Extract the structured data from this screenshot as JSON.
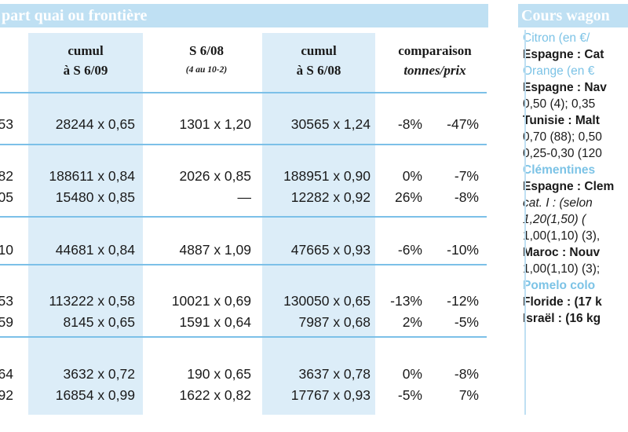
{
  "left": {
    "title": "part quai ou frontière",
    "headers": {
      "c1": [
        "cumul",
        "à S 6/09"
      ],
      "c2": [
        "S 6/08",
        "(4 au 10-2)"
      ],
      "c3": [
        "cumul",
        "à S 6/08"
      ],
      "c4": [
        "comparaison",
        "tonnes/prix"
      ]
    },
    "rows": [
      {
        "c0": "53",
        "c1": "28244 x 0,65",
        "c2": "1301 x 1,20",
        "c3": "30565 x 1,24",
        "c4a": "-8%",
        "c4b": "-47%"
      },
      {
        "c0": "82",
        "c1": "188611 x 0,84",
        "c2": "2026 x 0,85",
        "c3": "188951 x 0,90",
        "c4a": "0%",
        "c4b": "-7%"
      },
      {
        "c0": "05",
        "c1": "15480 x 0,85",
        "c2": "—",
        "c3": "12282 x 0,92",
        "c4a": "26%",
        "c4b": "-8%"
      },
      {
        "c0": "10",
        "c1": "44681 x 0,84",
        "c2": "4887 x 1,09",
        "c3": "47665 x 0,93",
        "c4a": "-6%",
        "c4b": "-10%"
      },
      {
        "c0": "53",
        "c1": "113222 x 0,58",
        "c2": "10021 x 0,69",
        "c3": "130050 x 0,65",
        "c4a": "-13%",
        "c4b": "-12%"
      },
      {
        "c0": "59",
        "c1": "8145 x 0,65",
        "c2": "1591 x 0,64",
        "c3": "7987 x 0,68",
        "c4a": "2%",
        "c4b": "-5%"
      },
      {
        "c0": "64",
        "c1": "3632 x 0,72",
        "c2": "190 x 0,65",
        "c3": "3637 x 0,78",
        "c4a": "0%",
        "c4b": "-8%"
      },
      {
        "c0": "92",
        "c1": "16854 x 0,99",
        "c2": "1622 x 0,82",
        "c3": "17767 x 0,93",
        "c4a": "-5%",
        "c4b": "7%"
      }
    ]
  },
  "right": {
    "title": "Cours wagon",
    "lines": [
      {
        "text": "Citron (en €/",
        "cls": "blue-mix"
      },
      {
        "text": "Espagne : Cat",
        "cls": "b"
      },
      {
        "text": "Orange (en €",
        "cls": "blue-mix"
      },
      {
        "text": "Espagne : Nav",
        "cls": "b-i"
      },
      {
        "text": "0,50 (4); 0,35",
        "cls": ""
      },
      {
        "text": "Tunisie : Malt",
        "cls": "b-i"
      },
      {
        "text": "0,70 (88); 0,50",
        "cls": ""
      },
      {
        "text": "0,25-0,30 (120",
        "cls": ""
      },
      {
        "text": "Clémentines",
        "cls": "blue"
      },
      {
        "text": "Espagne : Clem",
        "cls": "b-i"
      },
      {
        "text": "cat. I :   (selon",
        "cls": "i"
      },
      {
        "text": "1,20(1,50)    (",
        "cls": "i"
      },
      {
        "text": "1,00(1,10) (3),",
        "cls": ""
      },
      {
        "text": "Maroc : Nouv",
        "cls": "b-i"
      },
      {
        "text": "1,00(1,10) (3);",
        "cls": ""
      },
      {
        "text": "Pomelo colo",
        "cls": "blue"
      },
      {
        "text": "Floride : (17 k",
        "cls": "b"
      },
      {
        "text": "Israël : (16 kg",
        "cls": "b"
      }
    ]
  }
}
